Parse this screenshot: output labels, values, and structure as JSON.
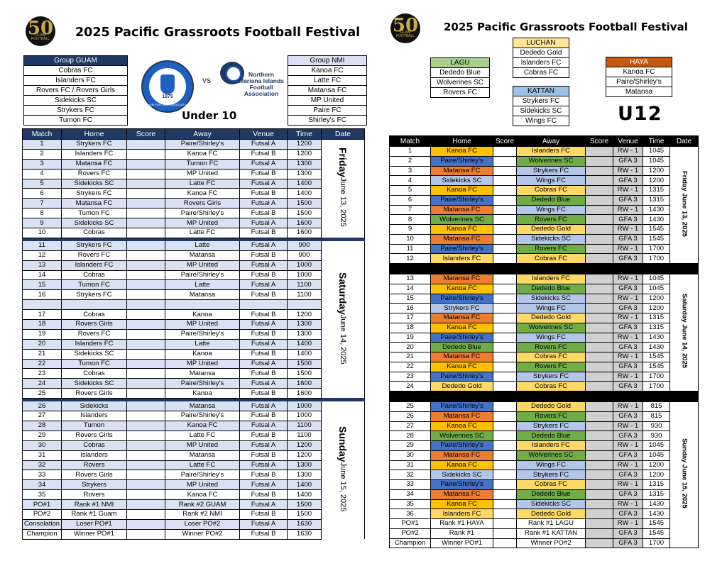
{
  "colors": {
    "u10_header": "#1f3864",
    "u10_alt_row": "#d9e1f2",
    "Kanoa FC": "#ffc000",
    "Paire/Shirley's": "#4472c4",
    "Matansa FC": "#ed7d31",
    "Wolverines SC": "#70ad47",
    "Dededo Blue": "#70ad47",
    "Islanders FC": "#ffd966",
    "Dededo Gold": "#ffd966",
    "Cobras FC": "#ffd966",
    "Sidekicks SC": "#b4c6e7",
    "Strykers FC": "#b4c6e7",
    "Wings FC": "#b4c6e7",
    "Rovers FC": "#70ad47",
    "score_gray": "#d0d0d0"
  },
  "logo": {
    "number": "50",
    "caption": "GUAM FOOTBALL"
  },
  "left": {
    "title": "2025 Pacific Grassroots Football Festival",
    "group_guam": {
      "title": "Group GUAM",
      "teams": [
        "Cobras FC",
        "Islanders FC",
        "Rovers FC / Rovers Girls",
        "Sidekicks SC",
        "Strykers FC",
        "Tumon FC"
      ]
    },
    "group_nmi": {
      "title": "Group NMI",
      "teams": [
        "Kanoa FC",
        "Latte FC",
        "Matansa FC",
        "MP United",
        "Paire FC",
        "Shirley's FC"
      ]
    },
    "guam_logo_text": "GUAM FOOTBALL ASSOCIATION",
    "guam_logo_year": "1975",
    "vs": "VS",
    "nmi_logo_text": "Northern Mariana Islands Football Association",
    "division": "Under 10",
    "headers": [
      "Match",
      "Home",
      "Score",
      "Away",
      "Venue",
      "Time",
      "Date"
    ],
    "days": [
      {
        "date_main": "Friday",
        "date_sub": "June 13, 2025",
        "rows": [
          [
            "1",
            "Strykers FC",
            "",
            "Paire/Shirley's",
            "Futsal A",
            "1200"
          ],
          [
            "2",
            "Islanders FC",
            "",
            "Kanoa FC",
            "Futsal B",
            "1200"
          ],
          [
            "3",
            "Matansa FC",
            "",
            "Tumon FC",
            "Futsal A",
            "1300"
          ],
          [
            "4",
            "Rovers FC",
            "",
            "MP United",
            "Futsal B",
            "1300"
          ],
          [
            "5",
            "Sidekicks SC",
            "",
            "Latte FC",
            "Futsal A",
            "1400"
          ],
          [
            "6",
            "Strykers FC",
            "",
            "Kanoa FC",
            "Futsal B",
            "1400"
          ],
          [
            "7",
            "Matansa FC",
            "",
            "Rovers Girls",
            "Futsal A",
            "1500"
          ],
          [
            "8",
            "Tumon FC",
            "",
            "Paire/Shirley's",
            "Futsal B",
            "1500"
          ],
          [
            "9",
            "Sidekicks SC",
            "",
            "MP United",
            "Futsal A",
            "1600"
          ],
          [
            "10",
            "Cobras",
            "",
            "Latte FC",
            "Futsal B",
            "1600"
          ]
        ]
      },
      {
        "date_main": "Saturday",
        "date_sub": "June 14, 2025",
        "rows": [
          [
            "11",
            "Strykers FC",
            "",
            "Latte",
            "Futsal A",
            "900"
          ],
          [
            "12",
            "Rovers FC",
            "",
            "Matansa",
            "Futsal B",
            "900"
          ],
          [
            "13",
            "Islanders FC",
            "",
            "MP United",
            "Futsal A",
            "1000"
          ],
          [
            "14",
            "Cobras",
            "",
            "Paire/Shirley's",
            "Futsal B",
            "1000"
          ],
          [
            "15",
            "Tumon FC",
            "",
            "Latte",
            "Futsal A",
            "1100"
          ],
          [
            "16",
            "Strykers FC",
            "",
            "Matansa",
            "Futsal B",
            "1100"
          ],
          [
            "",
            "",
            "",
            "",
            "",
            ""
          ],
          [
            "17",
            "Cobras",
            "",
            "Kanoa",
            "Futsal B",
            "1200"
          ],
          [
            "18",
            "Rovers Girls",
            "",
            "MP United",
            "Futsal A",
            "1300"
          ],
          [
            "19",
            "Rovers FC",
            "",
            "Paire/Shirley's",
            "Futsal B",
            "1300"
          ],
          [
            "20",
            "Islanders FC",
            "",
            "Latte",
            "Futsal A",
            "1400"
          ],
          [
            "21",
            "Sidekicks SC",
            "",
            "Kanoa",
            "Futsal B",
            "1400"
          ],
          [
            "22",
            "Tumon FC",
            "",
            "MP United",
            "Futsal A",
            "1500"
          ],
          [
            "23",
            "Cobras",
            "",
            "Matansa",
            "Futsal B",
            "1500"
          ],
          [
            "24",
            "Sidekicks SC",
            "",
            "Paire/Shirley's",
            "Futsal A",
            "1600"
          ],
          [
            "25",
            "Rovers Girls",
            "",
            "Kanoa",
            "Futsal B",
            "1600"
          ]
        ]
      },
      {
        "date_main": "Sunday",
        "date_sub": "June 15, 2025",
        "rows": [
          [
            "26",
            "Sidekicks",
            "",
            "Matansa",
            "Futsal A",
            "1000"
          ],
          [
            "27",
            "Islanders",
            "",
            "Paire/Shirley's",
            "Futsal B",
            "1000"
          ],
          [
            "28",
            "Tumon",
            "",
            "Kanoa FC",
            "Futsal A",
            "1100"
          ],
          [
            "29",
            "Rovers Girls",
            "",
            "Latte FC",
            "Futsal B",
            "1100"
          ],
          [
            "30",
            "Cobras",
            "",
            "MP United",
            "Futsal A",
            "1200"
          ],
          [
            "31",
            "Islanders",
            "",
            "Matansa",
            "Futsal B",
            "1200"
          ],
          [
            "32",
            "Rovers",
            "",
            "Latte FC",
            "Futsal A",
            "1300"
          ],
          [
            "33",
            "Rovers Girls",
            "",
            "Paire/Shirley's",
            "Futsal B",
            "1300"
          ],
          [
            "34",
            "Strykers",
            "",
            "MP United",
            "Futsal A",
            "1400"
          ],
          [
            "35",
            "Rovers",
            "",
            "Kanoa FC",
            "Futsal B",
            "1400"
          ],
          [
            "PO#1",
            "Rank #1 NMI",
            "",
            "Rank #2 GUAM",
            "Futsal A",
            "1500"
          ],
          [
            "PO#2",
            "Rank #1 Guam",
            "",
            "Rank #2 NMI",
            "Futsal B",
            "1500"
          ],
          [
            "Consolation",
            "Loser PO#1",
            "",
            "Loser PO#2",
            "Futsal A",
            "1630"
          ],
          [
            "Champion",
            "Winner PO#1",
            "",
            "Winner PO#2",
            "Futsal B",
            "1630"
          ]
        ]
      }
    ]
  },
  "right": {
    "title": "2025 Pacific Grassroots Football Festival",
    "division": "U12",
    "groups": {
      "lagu": {
        "title": "LAGU",
        "teams": [
          "Dededo Blue",
          "Wolverines SC",
          "Rovers FC"
        ]
      },
      "luchan": {
        "title": "LUCHAN",
        "teams": [
          "Dededo Gold",
          "Islanders FC",
          "Cobras FC"
        ]
      },
      "haya": {
        "title": "HAYA",
        "teams": [
          "Kanoa FC",
          "Paire/Shirley's",
          "Matansa"
        ]
      },
      "kattan": {
        "title": "KATTAN",
        "teams": [
          "Strykers FC",
          "Sidekicks SC",
          "Wings FC"
        ]
      }
    },
    "headers": [
      "Match",
      "Home",
      "Score",
      "Away",
      "Score",
      "Venue",
      "Time",
      "Date"
    ],
    "days": [
      {
        "date": "Friday June 13, 2025",
        "rows": [
          [
            "1",
            "Kanoa FC",
            "",
            "Islanders FC",
            "",
            "RW - 1",
            "1045"
          ],
          [
            "2",
            "Paire/Shirley's",
            "",
            "Wolverines SC",
            "",
            "GFA 3",
            "1045"
          ],
          [
            "3",
            "Matansa FC",
            "",
            "Strykers FC",
            "",
            "RW - 1",
            "1200"
          ],
          [
            "4",
            "Sidekicks SC",
            "",
            "Wings FC",
            "",
            "GFA 3",
            "1200"
          ],
          [
            "5",
            "Kanoa FC",
            "",
            "Cobras FC",
            "",
            "RW - 1",
            "1315"
          ],
          [
            "6",
            "Paire/Shirley's",
            "",
            "Dededo Blue",
            "",
            "GFA 3",
            "1315"
          ],
          [
            "7",
            "Matansa FC",
            "",
            "Wings FC",
            "",
            "RW - 1",
            "1430"
          ],
          [
            "8",
            "Wolverines SC",
            "",
            "Rovers FC",
            "",
            "GFA 3",
            "1430"
          ],
          [
            "9",
            "Kanoa FC",
            "",
            "Dededo Gold",
            "",
            "RW - 1",
            "1545"
          ],
          [
            "10",
            "Matansa FC",
            "",
            "Sidekicks SC",
            "",
            "GFA 3",
            "1545"
          ],
          [
            "11",
            "Paire/Shirley's",
            "",
            "Rovers FC",
            "",
            "RW - 1",
            "1700"
          ],
          [
            "12",
            "Islanders FC",
            "",
            "Cobras FC",
            "",
            "GFA 3",
            "1700"
          ]
        ]
      },
      {
        "date": "Saturday June 14, 2025",
        "rows": [
          [
            "13",
            "Matansa FC",
            "",
            "Islanders FC",
            "",
            "RW - 1",
            "1045"
          ],
          [
            "14",
            "Kanoa FC",
            "",
            "Dededo Blue",
            "",
            "GFA 3",
            "1045"
          ],
          [
            "15",
            "Paire/Shirley's",
            "",
            "Sidekicks SC",
            "",
            "RW - 1",
            "1200"
          ],
          [
            "16",
            "Strykers FC",
            "",
            "Wings FC",
            "",
            "GFA 3",
            "1200"
          ],
          [
            "17",
            "Matansa FC",
            "",
            "Dededo Gold",
            "",
            "RW - 1",
            "1315"
          ],
          [
            "18",
            "Kanoa FC",
            "",
            "Wolverines SC",
            "",
            "GFA 3",
            "1315"
          ],
          [
            "19",
            "Paire/Shirley's",
            "",
            "Wings FC",
            "",
            "RW - 1",
            "1430"
          ],
          [
            "20",
            "Dededo Blue",
            "",
            "Rovers FC",
            "",
            "GFA 3",
            "1430"
          ],
          [
            "21",
            "Matansa FC",
            "",
            "Cobras FC",
            "",
            "RW - 1",
            "1545"
          ],
          [
            "22",
            "Kanoa FC",
            "",
            "Rovers FC",
            "",
            "GFA 3",
            "1545"
          ],
          [
            "23",
            "Paire/Shirley's",
            "",
            "Strykers FC",
            "",
            "RW - 1",
            "1700"
          ],
          [
            "24",
            "Dededo Gold",
            "",
            "Cobras FC",
            "",
            "GFA 3",
            "1700"
          ]
        ]
      },
      {
        "date": "Sunday June 15, 2025",
        "rows": [
          [
            "25",
            "Paire/Shirley's",
            "",
            "Dededo Gold",
            "",
            "RW - 1",
            "815"
          ],
          [
            "26",
            "Matansa FC",
            "",
            "Rovers FC",
            "",
            "GFA 3",
            "815"
          ],
          [
            "27",
            "Kanoa FC",
            "",
            "Strykers FC",
            "",
            "RW - 1",
            "930"
          ],
          [
            "28",
            "Wolverines SC",
            "",
            "Dededo Blue",
            "",
            "GFA 3",
            "930"
          ],
          [
            "29",
            "Paire/Shirley's",
            "",
            "Islanders FC",
            "",
            "RW - 1",
            "1045"
          ],
          [
            "30",
            "Matansa FC",
            "",
            "Wolverines SC",
            "",
            "GFA 3",
            "1045"
          ],
          [
            "31",
            "Kanoa FC",
            "",
            "Wings FC",
            "",
            "RW - 1",
            "1200"
          ],
          [
            "32",
            "Sidekicks SC",
            "",
            "Strykers FC",
            "",
            "GFA 3",
            "1200"
          ],
          [
            "33",
            "Paire/Shirley's",
            "",
            "Cobras FC",
            "",
            "RW - 1",
            "1315"
          ],
          [
            "34",
            "Matansa FC",
            "",
            "Dededo Blue",
            "",
            "GFA 3",
            "1315"
          ],
          [
            "35",
            "Kanoa FC",
            "",
            "Sidekicks SC",
            "",
            "RW - 1",
            "1430"
          ],
          [
            "36",
            "Islanders FC",
            "",
            "Dededo Gold",
            "",
            "GFA 3",
            "1430"
          ],
          [
            "PO#1",
            "Rank #1 HAYA",
            "",
            "Rank #1 LAGU",
            "",
            "RW - 1",
            "1545"
          ],
          [
            "PO#2",
            "Rank #1",
            "",
            "Rank #1 KATTAN",
            "",
            "GFA 3",
            "1545"
          ],
          [
            "Champion",
            "Winner PO#1",
            "",
            "Winner PO#2",
            "",
            "GFA 3",
            "1700"
          ]
        ]
      }
    ]
  }
}
